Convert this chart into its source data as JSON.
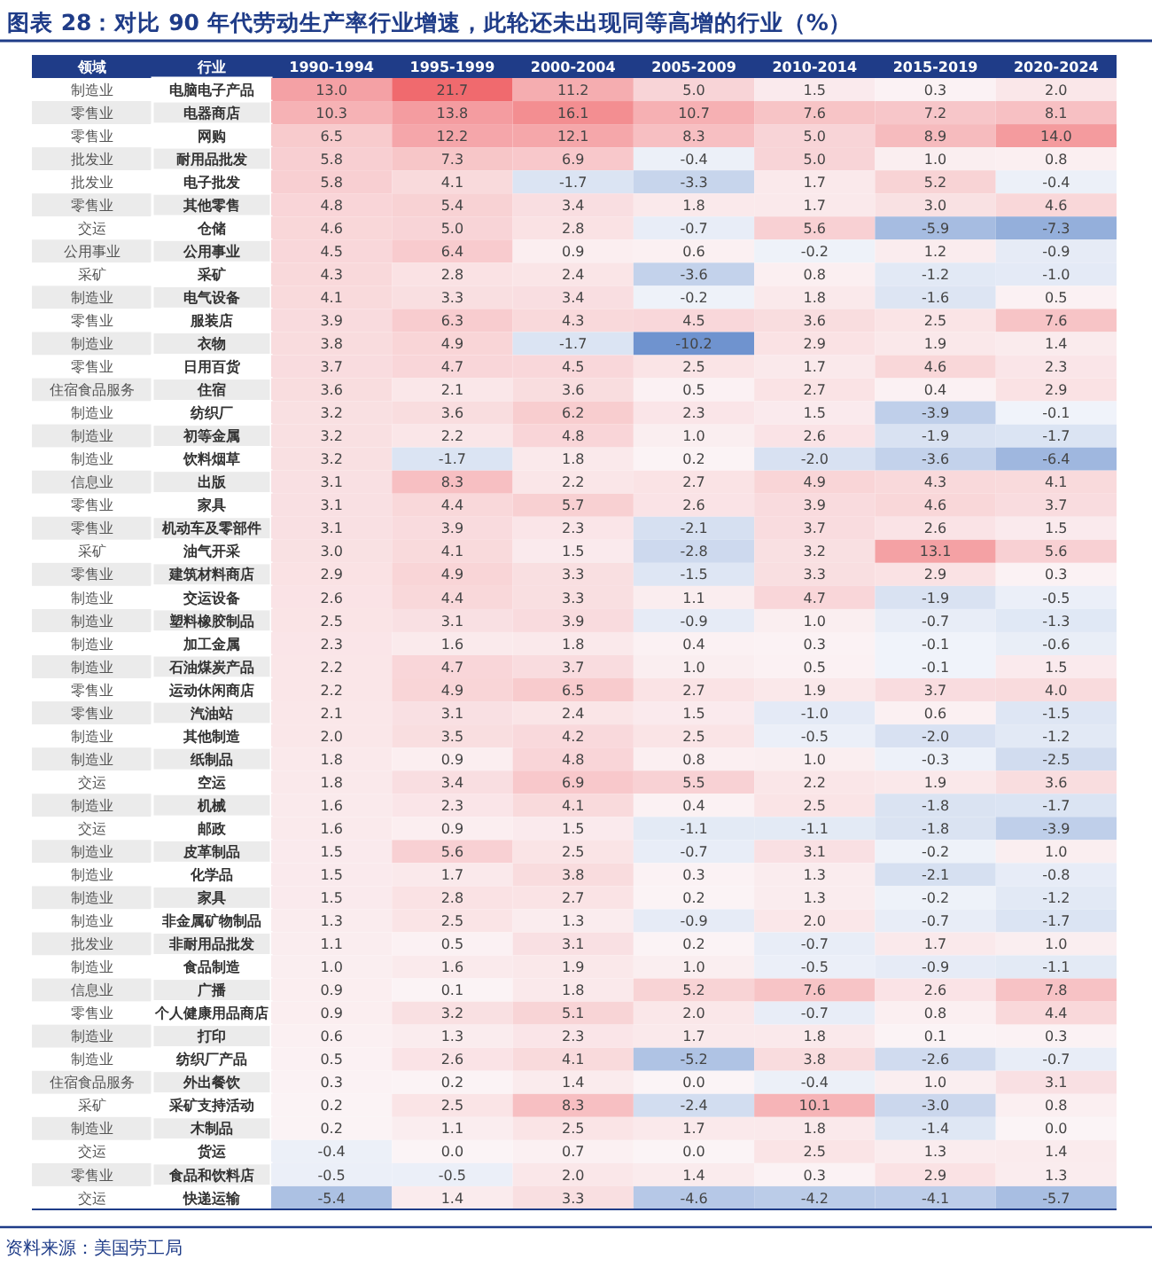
{
  "chart_data": {
    "type": "heatmap",
    "title": "图表 28：对比 90 年代劳动生产率行业增速，此轮还未出现同等高增的行业（%）",
    "y2label": "领域",
    "ylabel": "行业",
    "categories": [
      "1990-1994",
      "1995-1999",
      "2000-2004",
      "2005-2009",
      "2010-2014",
      "2015-2019",
      "2020-2024"
    ],
    "y2_categories": [
      "制造业",
      "零售业",
      "零售业",
      "批发业",
      "批发业",
      "零售业",
      "交运",
      "公用事业",
      "采矿",
      "制造业",
      "零售业",
      "制造业",
      "零售业",
      "住宿食品服务",
      "制造业",
      "制造业",
      "制造业",
      "信息业",
      "零售业",
      "零售业",
      "采矿",
      "零售业",
      "制造业",
      "制造业",
      "制造业",
      "制造业",
      "零售业",
      "零售业",
      "制造业",
      "制造业",
      "交运",
      "制造业",
      "交运",
      "制造业",
      "制造业",
      "制造业",
      "制造业",
      "批发业",
      "制造业",
      "信息业",
      "零售业",
      "制造业",
      "制造业",
      "住宿食品服务",
      "采矿",
      "制造业",
      "交运",
      "零售业",
      "交运"
    ],
    "y_categories": [
      "电脑电子产品",
      "电器商店",
      "网购",
      "耐用品批发",
      "电子批发",
      "其他零售",
      "仓储",
      "公用事业",
      "采矿",
      "电气设备",
      "服装店",
      "衣物",
      "日用百货",
      "住宿",
      "纺织厂",
      "初等金属",
      "饮料烟草",
      "出版",
      "家具",
      "机动车及零部件",
      "油气开采",
      "建筑材料商店",
      "交运设备",
      "塑料橡胶制品",
      "加工金属",
      "石油煤炭产品",
      "运动休闲商店",
      "汽油站",
      "其他制造",
      "纸制品",
      "空运",
      "机械",
      "邮政",
      "皮革制品",
      "化学品",
      "家具",
      "非金属矿物制品",
      "非耐用品批发",
      "食品制造",
      "广播",
      "个人健康用品商店",
      "打印",
      "纺织厂产品",
      "外出餐饮",
      "采矿支持活动",
      "木制品",
      "货运",
      "食品和饮料店",
      "快递运输"
    ],
    "cells": [
      [
        13.0,
        21.7,
        11.2,
        5.0,
        1.5,
        0.3,
        2.0
      ],
      [
        10.3,
        13.8,
        16.1,
        10.7,
        7.6,
        7.2,
        8.1
      ],
      [
        6.5,
        12.2,
        12.1,
        8.3,
        5.0,
        8.9,
        14.0
      ],
      [
        5.8,
        7.3,
        6.9,
        -0.4,
        5.0,
        1.0,
        0.8
      ],
      [
        5.8,
        4.1,
        -1.7,
        -3.3,
        1.7,
        5.2,
        -0.4
      ],
      [
        4.8,
        5.4,
        3.4,
        1.8,
        1.7,
        3.0,
        4.6
      ],
      [
        4.6,
        5.0,
        2.8,
        -0.7,
        5.6,
        -5.9,
        -7.3
      ],
      [
        4.5,
        6.4,
        0.9,
        0.6,
        -0.2,
        1.2,
        -0.9
      ],
      [
        4.3,
        2.8,
        2.4,
        -3.6,
        0.8,
        -1.2,
        -1.0
      ],
      [
        4.1,
        3.3,
        3.4,
        -0.2,
        1.8,
        -1.6,
        0.5
      ],
      [
        3.9,
        6.3,
        4.3,
        4.5,
        3.6,
        2.5,
        7.6
      ],
      [
        3.8,
        4.9,
        -1.7,
        -10.2,
        2.9,
        1.9,
        1.4
      ],
      [
        3.7,
        4.7,
        4.5,
        2.5,
        1.7,
        4.6,
        2.3
      ],
      [
        3.6,
        2.1,
        3.6,
        0.5,
        2.7,
        0.4,
        2.9
      ],
      [
        3.2,
        3.6,
        6.2,
        2.3,
        1.5,
        -3.9,
        -0.1
      ],
      [
        3.2,
        2.2,
        4.8,
        1.0,
        2.6,
        -1.9,
        -1.7
      ],
      [
        3.2,
        -1.7,
        1.8,
        0.2,
        -2.0,
        -3.6,
        -6.4
      ],
      [
        3.1,
        8.3,
        2.2,
        2.7,
        4.9,
        4.3,
        4.1
      ],
      [
        3.1,
        4.4,
        5.7,
        2.6,
        3.9,
        4.6,
        3.7
      ],
      [
        3.1,
        3.9,
        2.3,
        -2.1,
        3.7,
        2.6,
        1.5
      ],
      [
        3.0,
        4.1,
        1.5,
        -2.8,
        3.2,
        13.1,
        5.6
      ],
      [
        2.9,
        4.9,
        3.3,
        -1.5,
        3.3,
        2.9,
        0.3
      ],
      [
        2.6,
        4.4,
        3.3,
        1.1,
        4.7,
        -1.9,
        -0.5
      ],
      [
        2.5,
        3.1,
        3.9,
        -0.9,
        1.0,
        -0.7,
        -1.3
      ],
      [
        2.3,
        1.6,
        1.8,
        0.4,
        0.3,
        -0.1,
        -0.6
      ],
      [
        2.2,
        4.7,
        3.7,
        1.0,
        0.5,
        -0.1,
        1.5
      ],
      [
        2.2,
        4.9,
        6.5,
        2.7,
        1.9,
        3.7,
        4.0
      ],
      [
        2.1,
        3.1,
        2.4,
        1.5,
        -1.0,
        0.6,
        -1.5
      ],
      [
        2.0,
        3.5,
        4.2,
        2.5,
        -0.5,
        -2.0,
        -1.2
      ],
      [
        1.8,
        0.9,
        4.8,
        0.8,
        1.0,
        -0.3,
        -2.5
      ],
      [
        1.8,
        3.4,
        6.9,
        5.5,
        2.2,
        1.9,
        3.6
      ],
      [
        1.6,
        2.3,
        4.1,
        0.4,
        2.5,
        -1.8,
        -1.7
      ],
      [
        1.6,
        0.9,
        1.5,
        -1.1,
        -1.1,
        -1.8,
        -3.9
      ],
      [
        1.5,
        5.6,
        2.5,
        -0.7,
        3.1,
        -0.2,
        1.0
      ],
      [
        1.5,
        1.7,
        3.8,
        0.3,
        1.3,
        -2.1,
        -0.8
      ],
      [
        1.5,
        2.8,
        2.7,
        0.2,
        1.3,
        -0.2,
        -1.2
      ],
      [
        1.3,
        2.5,
        1.3,
        -0.9,
        2.0,
        -0.7,
        -1.7
      ],
      [
        1.1,
        0.5,
        3.1,
        0.2,
        -0.7,
        1.7,
        1.0
      ],
      [
        1.0,
        1.6,
        1.9,
        1.0,
        -0.5,
        -0.9,
        -1.1
      ],
      [
        0.9,
        0.1,
        1.8,
        5.2,
        7.6,
        2.6,
        7.8
      ],
      [
        0.9,
        3.2,
        5.1,
        2.0,
        -0.7,
        0.8,
        4.4
      ],
      [
        0.6,
        1.3,
        2.3,
        1.7,
        1.8,
        0.1,
        0.3
      ],
      [
        0.5,
        2.6,
        4.1,
        -5.2,
        3.8,
        -2.6,
        -0.7
      ],
      [
        0.3,
        0.2,
        1.4,
        0.0,
        -0.4,
        1.0,
        3.1
      ],
      [
        0.2,
        2.5,
        8.3,
        -2.4,
        10.1,
        -3.0,
        0.8
      ],
      [
        0.2,
        1.1,
        2.5,
        1.7,
        1.8,
        -1.4,
        0.0
      ],
      [
        -0.4,
        0.0,
        0.7,
        0.0,
        2.5,
        1.3,
        1.4
      ],
      [
        -0.5,
        -0.5,
        2.0,
        1.4,
        0.3,
        2.9,
        1.3
      ],
      [
        -5.4,
        1.4,
        3.3,
        -4.6,
        -4.2,
        -4.1,
        -5.7
      ]
    ],
    "cell_labels": [
      [
        "13.0",
        "21.7",
        "11.2",
        "5.0",
        "1.5",
        "0.3",
        "2.0"
      ],
      [
        "10.3",
        "13.8",
        "16.1",
        "10.7",
        "7.6",
        "7.2",
        "8.1"
      ],
      [
        "6.5",
        "12.2",
        "12.1",
        "8.3",
        "5.0",
        "8.9",
        "14.0"
      ],
      [
        "5.8",
        "7.3",
        "6.9",
        "-0.4",
        "5.0",
        "1.0",
        "0.8"
      ],
      [
        "5.8",
        "4.1",
        "-1.7",
        "-3.3",
        "1.7",
        "5.2",
        "-0.4"
      ],
      [
        "4.8",
        "5.4",
        "3.4",
        "1.8",
        "1.7",
        "3.0",
        "4.6"
      ],
      [
        "4.6",
        "5.0",
        "2.8",
        "-0.7",
        "5.6",
        "-5.9",
        "-7.3"
      ],
      [
        "4.5",
        "6.4",
        "0.9",
        "0.6",
        "-0.2",
        "1.2",
        "-0.9"
      ],
      [
        "4.3",
        "2.8",
        "2.4",
        "-3.6",
        "0.8",
        "-1.2",
        "-1.0"
      ],
      [
        "4.1",
        "3.3",
        "3.4",
        "-0.2",
        "1.8",
        "-1.6",
        "0.5"
      ],
      [
        "3.9",
        "6.3",
        "4.3",
        "4.5",
        "3.6",
        "2.5",
        "7.6"
      ],
      [
        "3.8",
        "4.9",
        "-1.7",
        "-10.2",
        "2.9",
        "1.9",
        "1.4"
      ],
      [
        "3.7",
        "4.7",
        "4.5",
        "2.5",
        "1.7",
        "4.6",
        "2.3"
      ],
      [
        "3.6",
        "2.1",
        "3.6",
        "0.5",
        "2.7",
        "0.4",
        "2.9"
      ],
      [
        "3.2",
        "3.6",
        "6.2",
        "2.3",
        "1.5",
        "-3.9",
        "-0.1"
      ],
      [
        "3.2",
        "2.2",
        "4.8",
        "1.0",
        "2.6",
        "-1.9",
        "-1.7"
      ],
      [
        "3.2",
        "-1.7",
        "1.8",
        "0.2",
        "-2.0",
        "-3.6",
        "-6.4"
      ],
      [
        "3.1",
        "8.3",
        "2.2",
        "2.7",
        "4.9",
        "4.3",
        "4.1"
      ],
      [
        "3.1",
        "4.4",
        "5.7",
        "2.6",
        "3.9",
        "4.6",
        "3.7"
      ],
      [
        "3.1",
        "3.9",
        "2.3",
        "-2.1",
        "3.7",
        "2.6",
        "1.5"
      ],
      [
        "3.0",
        "4.1",
        "1.5",
        "-2.8",
        "3.2",
        "13.1",
        "5.6"
      ],
      [
        "2.9",
        "4.9",
        "3.3",
        "-1.5",
        "3.3",
        "2.9",
        "0.3"
      ],
      [
        "2.6",
        "4.4",
        "3.3",
        "1.1",
        "4.7",
        "-1.9",
        "-0.5"
      ],
      [
        "2.5",
        "3.1",
        "3.9",
        "-0.9",
        "1.0",
        "-0.7",
        "-1.3"
      ],
      [
        "2.3",
        "1.6",
        "1.8",
        "0.4",
        "0.3",
        "-0.1",
        "-0.6"
      ],
      [
        "2.2",
        "4.7",
        "3.7",
        "1.0",
        "0.5",
        "-0.1",
        "1.5"
      ],
      [
        "2.2",
        "4.9",
        "6.5",
        "2.7",
        "1.9",
        "3.7",
        "4.0"
      ],
      [
        "2.1",
        "3.1",
        "2.4",
        "1.5",
        "-1.0",
        "0.6",
        "-1.5"
      ],
      [
        "2.0",
        "3.5",
        "4.2",
        "2.5",
        "-0.5",
        "-2.0",
        "-1.2"
      ],
      [
        "1.8",
        "0.9",
        "4.8",
        "0.8",
        "1.0",
        "-0.3",
        "-2.5"
      ],
      [
        "1.8",
        "3.4",
        "6.9",
        "5.5",
        "2.2",
        "1.9",
        "3.6"
      ],
      [
        "1.6",
        "2.3",
        "4.1",
        "0.4",
        "2.5",
        "-1.8",
        "-1.7"
      ],
      [
        "1.6",
        "0.9",
        "1.5",
        "-1.1",
        "-1.1",
        "-1.8",
        "-3.9"
      ],
      [
        "1.5",
        "5.6",
        "2.5",
        "-0.7",
        "3.1",
        "-0.2",
        "1.0"
      ],
      [
        "1.5",
        "1.7",
        "3.8",
        "0.3",
        "1.3",
        "-2.1",
        "-0.8"
      ],
      [
        "1.5",
        "2.8",
        "2.7",
        "0.2",
        "1.3",
        "-0.2",
        "-1.2"
      ],
      [
        "1.3",
        "2.5",
        "1.3",
        "-0.9",
        "2.0",
        "-0.7",
        "-1.7"
      ],
      [
        "1.1",
        "0.5",
        "3.1",
        "0.2",
        "-0.7",
        "1.7",
        "1.0"
      ],
      [
        "1.0",
        "1.6",
        "1.9",
        "1.0",
        "-0.5",
        "-0.9",
        "-1.1"
      ],
      [
        "0.9",
        "0.1",
        "1.8",
        "5.2",
        "7.6",
        "2.6",
        "7.8"
      ],
      [
        "0.9",
        "3.2",
        "5.1",
        "2.0",
        "-0.7",
        "0.8",
        "4.4"
      ],
      [
        "0.6",
        "1.3",
        "2.3",
        "1.7",
        "1.8",
        "0.1",
        "0.3"
      ],
      [
        "0.5",
        "2.6",
        "4.1",
        "-5.2",
        "3.8",
        "-2.6",
        "-0.7"
      ],
      [
        "0.3",
        "0.2",
        "1.4",
        "0.0",
        "-0.4",
        "1.0",
        "3.1"
      ],
      [
        "0.2",
        "2.5",
        "8.3",
        "-2.4",
        "10.1",
        "-3.0",
        "0.8"
      ],
      [
        "0.2",
        "1.1",
        "2.5",
        "1.7",
        "1.8",
        "-1.4",
        "0.0"
      ],
      [
        "-0.4",
        "0.0",
        "0.7",
        "0.0",
        "2.5",
        "1.3",
        "1.4"
      ],
      [
        "-0.5",
        "-0.5",
        "2.0",
        "1.4",
        "0.3",
        "2.9",
        "1.3"
      ],
      [
        "-5.4",
        "1.4",
        "3.3",
        "-4.6",
        "-4.2",
        "-4.1",
        "-5.7"
      ]
    ],
    "annotations": [
      "资料来源：美国劳工局"
    ]
  }
}
